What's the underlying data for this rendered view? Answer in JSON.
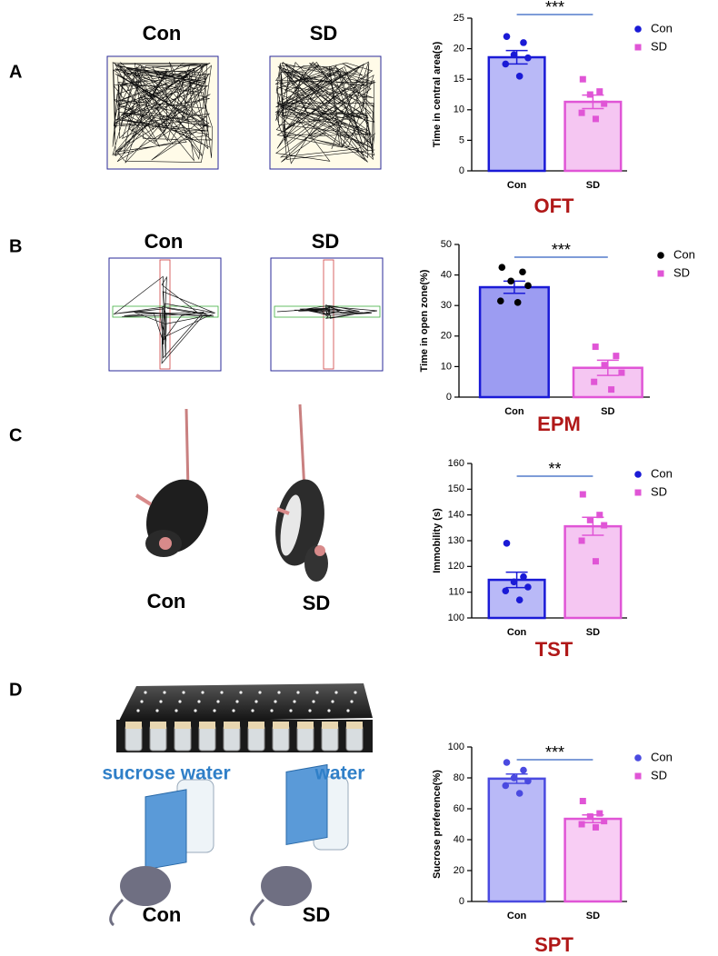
{
  "panels": [
    {
      "label": "A",
      "image_labels": [
        "Con",
        "SD"
      ]
    },
    {
      "label": "B",
      "image_labels": [
        "Con",
        "SD"
      ]
    },
    {
      "label": "C",
      "image_labels": [
        "Con",
        "SD"
      ]
    },
    {
      "label": "D",
      "image_labels": [
        "Con",
        "SD"
      ],
      "bottle_labels": [
        "sucrose water",
        "water"
      ]
    }
  ],
  "chart_data": [
    {
      "type": "bar",
      "title": "OFT",
      "ylabel": "Time in central area(s)",
      "categories": [
        "Con",
        "SD"
      ],
      "significance": "***",
      "ylim": [
        0,
        25
      ],
      "yticks": [
        0,
        5,
        10,
        15,
        20,
        25
      ],
      "series": [
        {
          "name": "Con",
          "color": "#1a1ad6",
          "bar_color": "#1a1ad6",
          "fill": "#b9b9f7",
          "marker": "circle",
          "value": 18.6,
          "error": 1.1,
          "points": [
            22,
            21,
            19,
            18.5,
            17.5,
            15.5
          ]
        },
        {
          "name": "SD",
          "color": "#e055d6",
          "bar_color": "#e055d6",
          "fill": "#f5c6f2",
          "marker": "square",
          "value": 11.3,
          "error": 1.1,
          "points": [
            15,
            13,
            12.5,
            11,
            9.5,
            8.5
          ]
        }
      ]
    },
    {
      "type": "bar",
      "title": "EPM",
      "ylabel": "Time in open zone(%)",
      "categories": [
        "Con",
        "SD"
      ],
      "significance": "***",
      "ylim": [
        0,
        50
      ],
      "yticks": [
        0,
        10,
        20,
        30,
        40,
        50
      ],
      "series": [
        {
          "name": "Con",
          "color": "#000000",
          "bar_color": "#1a1ad6",
          "fill": "#9c9cf2",
          "marker": "circle",
          "value": 36,
          "error": 2,
          "points": [
            42.5,
            41,
            38,
            36.5,
            31.5,
            31
          ]
        },
        {
          "name": "SD",
          "color": "#e055d6",
          "bar_color": "#e055d6",
          "fill": "#f5c6f2",
          "marker": "square",
          "value": 9.6,
          "error": 2.5,
          "points": [
            16.5,
            13.5,
            10.5,
            8,
            5,
            2.5
          ]
        }
      ]
    },
    {
      "type": "bar",
      "title": "TST",
      "ylabel": "Immobility (s)",
      "categories": [
        "Con",
        "SD"
      ],
      "significance": "**",
      "ylim": [
        100,
        160
      ],
      "yticks": [
        100,
        110,
        120,
        130,
        140,
        150,
        160
      ],
      "series": [
        {
          "name": "Con",
          "color": "#1a1ad6",
          "bar_color": "#1a1ad6",
          "fill": "#b9b9f7",
          "marker": "circle",
          "value": 114.8,
          "error": 3,
          "points": [
            129,
            116,
            114,
            112,
            110.5,
            107
          ]
        },
        {
          "name": "SD",
          "color": "#e055d6",
          "bar_color": "#e055d6",
          "fill": "#f5c6f2",
          "marker": "square",
          "value": 135.6,
          "error": 3.5,
          "points": [
            148,
            140,
            138,
            136,
            130,
            122
          ]
        }
      ]
    },
    {
      "type": "bar",
      "title": "SPT",
      "ylabel": "Sucrose preference(%)",
      "categories": [
        "Con",
        "SD"
      ],
      "significance": "***",
      "ylim": [
        0,
        100
      ],
      "yticks": [
        0,
        20,
        40,
        60,
        80,
        100
      ],
      "series": [
        {
          "name": "Con",
          "color": "#4a4ae0",
          "bar_color": "#4a4ae0",
          "fill": "#b9b9f7",
          "marker": "circle",
          "value": 79.5,
          "error": 3,
          "points": [
            90,
            85,
            80,
            78,
            75,
            70
          ]
        },
        {
          "name": "SD",
          "color": "#e055d6",
          "bar_color": "#e055d6",
          "fill": "#f8cdf4",
          "marker": "square",
          "value": 53.5,
          "error": 2.5,
          "points": [
            65,
            57,
            55,
            52,
            50,
            48
          ]
        }
      ]
    }
  ]
}
